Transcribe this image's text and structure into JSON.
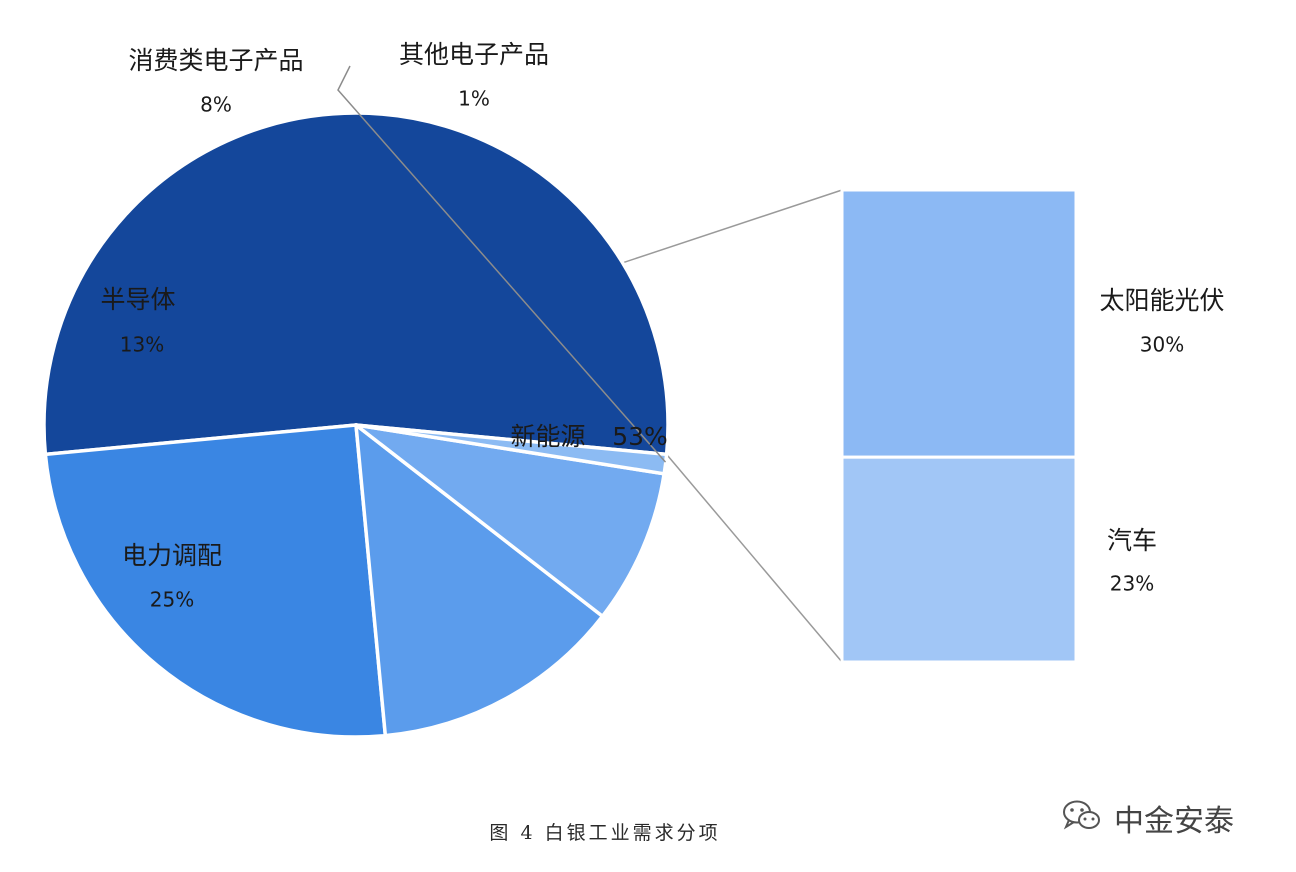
{
  "chart_data": {
    "type": "pie",
    "subtype": "bar-of-pie",
    "title": "",
    "caption": "图 4  白银工业需求分项",
    "slices": [
      {
        "label": "新能源",
        "value": 53,
        "value_label": "53%",
        "color": "#14479b"
      },
      {
        "label": "电力调配",
        "value": 25,
        "value_label": "25%",
        "color": "#3a86e3"
      },
      {
        "label": "半导体",
        "value": 13,
        "value_label": "13%",
        "color": "#5b9cec"
      },
      {
        "label": "消费类电子产品",
        "value": 8,
        "value_label": "8%",
        "color": "#72aaf0"
      },
      {
        "label": "其他电子产品",
        "value": 1,
        "value_label": "1%",
        "color": "#8cbbf3"
      }
    ],
    "breakdown_of": "新能源",
    "breakdown": [
      {
        "label": "太阳能光伏",
        "value": 30,
        "value_label": "30%",
        "color": "#8cb9f4"
      },
      {
        "label": "汽车",
        "value": 23,
        "value_label": "23%",
        "color": "#a1c6f6"
      }
    ],
    "legend": "none"
  },
  "source_mark": {
    "text": "中金安泰",
    "icon": "wechat-icon"
  }
}
